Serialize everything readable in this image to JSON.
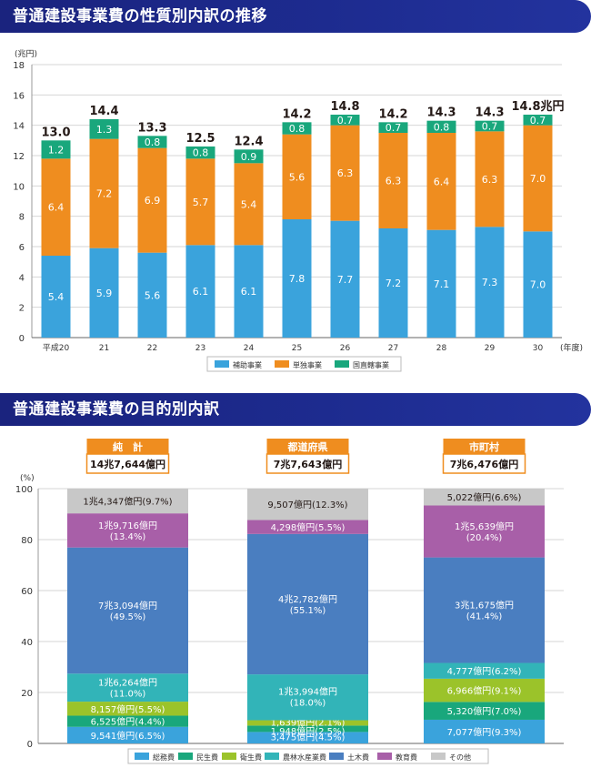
{
  "section1": {
    "title": "普通建設事業費の性質別内訳の推移"
  },
  "section2": {
    "title": "普通建設事業費の目的別内訳"
  },
  "colors": {
    "banner": "#1a237e",
    "hojo": "#3aa3dc",
    "tandoku": "#ef8d1f",
    "kokuchoku": "#19a77c",
    "somu": "#3aa3dc",
    "minsei": "#19a77c",
    "eisei": "#9bc32a",
    "norin": "#32b4b8",
    "doboku": "#4a7ec0",
    "kyoiku": "#a85fa8",
    "sonota": "#c8c8c8",
    "summary_border": "#ef8d1f",
    "summary_header": "#ef8d1f"
  },
  "chart_data": [
    {
      "type": "bar",
      "stacked": true,
      "unit_label": "(兆円)",
      "x_unit_label": "(年度)",
      "categories": [
        "平成20",
        "21",
        "22",
        "23",
        "24",
        "25",
        "26",
        "27",
        "28",
        "29",
        "30"
      ],
      "ylim": [
        0,
        18
      ],
      "yticks": [
        0,
        2,
        4,
        6,
        8,
        10,
        12,
        14,
        16,
        18
      ],
      "grid": true,
      "series": [
        {
          "name": "補助事業",
          "values": [
            5.4,
            5.9,
            5.6,
            6.1,
            6.1,
            7.8,
            7.7,
            7.2,
            7.1,
            7.3,
            7.0
          ]
        },
        {
          "name": "単独事業",
          "values": [
            6.4,
            7.2,
            6.9,
            5.7,
            5.4,
            5.6,
            6.3,
            6.3,
            6.4,
            6.3,
            7.0
          ]
        },
        {
          "name": "国直轄事業",
          "values": [
            1.2,
            1.3,
            0.8,
            0.8,
            0.9,
            0.8,
            0.7,
            0.7,
            0.8,
            0.7,
            0.7
          ]
        }
      ],
      "totals": [
        "13.0",
        "14.4",
        "13.3",
        "12.5",
        "12.4",
        "14.2",
        "14.8",
        "14.2",
        "14.3",
        "14.3",
        "14.8兆円"
      ],
      "labels": [
        [
          "5.4",
          "5.9",
          "5.6",
          "6.1",
          "6.1",
          "7.8",
          "7.7",
          "7.2",
          "7.1",
          "7.3",
          "7.0"
        ],
        [
          "6.4",
          "7.2",
          "6.9",
          "5.7",
          "5.4",
          "5.6",
          "6.3",
          "6.3",
          "6.4",
          "6.3",
          "7.0"
        ],
        [
          "1.2",
          "1.3",
          "0.8",
          "0.8",
          "0.9",
          "0.8",
          "0.7",
          "0.7",
          "0.8",
          "0.7",
          "0.7"
        ]
      ],
      "legend_position": "bottom"
    },
    {
      "type": "bar",
      "stacked": true,
      "percent": true,
      "unit_label": "(%)",
      "ylim": [
        0,
        100
      ],
      "yticks": [
        0,
        20,
        40,
        60,
        80,
        100
      ],
      "grid": true,
      "categories": [
        "純　計",
        "都道府県",
        "市町村"
      ],
      "totals": [
        "14兆7,644億円",
        "7兆7,643億円",
        "7兆6,476億円"
      ],
      "series": [
        {
          "name": "総務費",
          "values": [
            6.5,
            4.5,
            9.3
          ],
          "labels": [
            [
              "9,541億円(6.5%)"
            ],
            [
              "3,475億円(4.5%)"
            ],
            [
              "7,077億円(9.3%)"
            ]
          ]
        },
        {
          "name": "民生費",
          "values": [
            4.4,
            2.5,
            7.0
          ],
          "labels": [
            [
              "6,525億円(4.4%)"
            ],
            [
              "1,948億円(2.5%)"
            ],
            [
              "5,320億円(7.0%)"
            ]
          ]
        },
        {
          "name": "衛生費",
          "values": [
            5.5,
            2.1,
            9.1
          ],
          "labels": [
            [
              "8,157億円(5.5%)"
            ],
            [
              "1,639億円(2.1%)"
            ],
            [
              "6,966億円(9.1%)"
            ]
          ]
        },
        {
          "name": "農林水産業費",
          "values": [
            11.0,
            18.0,
            6.2
          ],
          "labels": [
            [
              "1兆6,264億円",
              "(11.0%)"
            ],
            [
              "1兆3,994億円",
              "(18.0%)"
            ],
            [
              "4,777億円(6.2%)"
            ]
          ]
        },
        {
          "name": "土木費",
          "values": [
            49.5,
            55.1,
            41.4
          ],
          "labels": [
            [
              "7兆3,094億円",
              "(49.5%)"
            ],
            [
              "4兆2,782億円",
              "(55.1%)"
            ],
            [
              "3兆1,675億円",
              "(41.4%)"
            ]
          ]
        },
        {
          "name": "教育費",
          "values": [
            13.4,
            5.5,
            20.4
          ],
          "labels": [
            [
              "1兆9,716億円",
              "(13.4%)"
            ],
            [
              "4,298億円(5.5%)"
            ],
            [
              "1兆5,639億円",
              "(20.4%)"
            ]
          ]
        },
        {
          "name": "その他",
          "values": [
            9.7,
            12.3,
            6.6
          ],
          "labels": [
            [
              "1兆4,347億円(9.7%)"
            ],
            [
              "9,507億円(12.3%)"
            ],
            [
              "5,022億円(6.6%)"
            ]
          ]
        }
      ],
      "legend_position": "bottom"
    }
  ]
}
